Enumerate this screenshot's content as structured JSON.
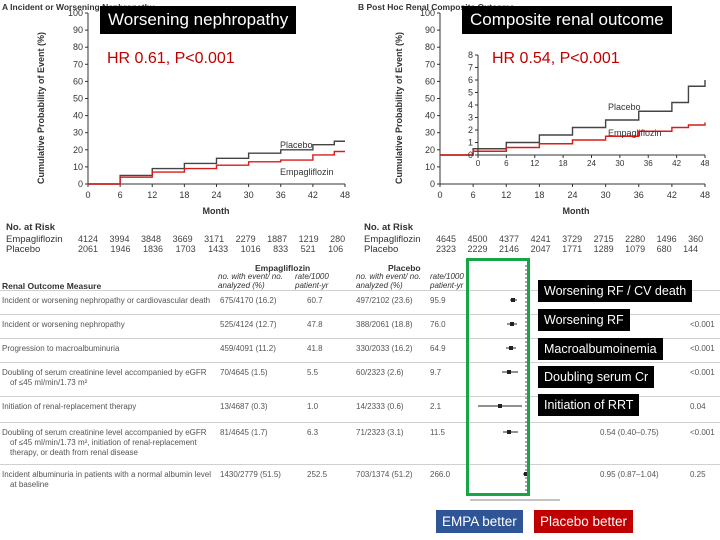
{
  "panel_a": {
    "header": "A Incident or Worsening Nephropathy",
    "banner": "Worsening nephropathy",
    "hr_text": "HR 0.61, P<0.001",
    "ylabel": "Cumulative Probability of Event (%)",
    "xlabel": "Month",
    "yticks": [
      "0",
      "10",
      "20",
      "30",
      "40",
      "50",
      "60",
      "70",
      "80",
      "90",
      "100"
    ],
    "xticks": [
      "0",
      "6",
      "12",
      "18",
      "24",
      "30",
      "36",
      "42",
      "48"
    ],
    "curve_labels": {
      "placebo": "Placebo",
      "empa": "Empagliflozin"
    },
    "risk": {
      "title": "No. at Risk",
      "rows": [
        {
          "label": "Empagliflozin",
          "values": "4124 3994 3848 3669 3171 2279 1887 1219 280"
        },
        {
          "label": "Placebo",
          "values": "2061 1946 1836 1703 1433 1016 833 521 106"
        }
      ]
    }
  },
  "panel_b": {
    "header": "B Post Hoc Renal Composite Outcome",
    "banner": "Composite renal outcome",
    "hr_text": "HR 0.54, P<0.001",
    "ylabel": "Cumulative Probability of Event (%)",
    "xlabel": "Month",
    "yticks": [
      "0",
      "10",
      "20",
      "30",
      "40",
      "50",
      "60",
      "70",
      "80",
      "90",
      "100"
    ],
    "inset_yticks": [
      "0",
      "1",
      "2",
      "3",
      "4",
      "5",
      "6",
      "7",
      "8"
    ],
    "xticks": [
      "0",
      "6",
      "12",
      "18",
      "24",
      "30",
      "36",
      "42",
      "48"
    ],
    "curve_labels": {
      "placebo": "Placebo",
      "empa": "Empagliflozin"
    },
    "risk": {
      "title": "No. at Risk",
      "rows": [
        {
          "label": "Empagliflozin",
          "values": "4645 4500 4377 4241 3729 2715 2280 1496 360"
        },
        {
          "label": "Placebo",
          "values": "2323 2229 2146 2047 1771 1289 1079 680 144"
        }
      ]
    }
  },
  "table": {
    "col_measure": "Renal Outcome Measure",
    "col_empa": "Empagliflozin",
    "col_placebo": "Placebo",
    "sub_events": "no. with event/ no. analyzed (%)",
    "sub_rate": "rate/1000 patient-yr",
    "rows": [
      {
        "measure": [
          "Incident or worsening nephropathy or cardiovascular death"
        ],
        "empa": "675/4170 (16.2)",
        "empa_rate": "60.7",
        "plac": "497/2102 (23.6)",
        "plac_rate": "95.9",
        "hr": "",
        "p": ""
      },
      {
        "measure": [
          "Incident or worsening nephropathy"
        ],
        "empa": "525/4124 (12.7)",
        "empa_rate": "47.8",
        "plac": "388/2061 (18.8)",
        "plac_rate": "76.0",
        "hr": "",
        "p": "<0.001"
      },
      {
        "measure": [
          "Progression to macroalbuminuria"
        ],
        "empa": "459/4091 (11.2)",
        "empa_rate": "41.8",
        "plac": "330/2033 (16.2)",
        "plac_rate": "64.9",
        "hr": "",
        "p": "<0.001"
      },
      {
        "measure": [
          "Doubling of serum creatinine level accompanied by eGFR",
          "of ≤45 ml/min/1.73 m²"
        ],
        "empa": "70/4645 (1.5)",
        "empa_rate": "5.5",
        "plac": "60/2323 (2.6)",
        "plac_rate": "9.7",
        "hr": "",
        "p": "<0.001"
      },
      {
        "measure": [
          "Initiation of renal-replacement therapy"
        ],
        "empa": "13/4687 (0.3)",
        "empa_rate": "1.0",
        "plac": "14/2333 (0.6)",
        "plac_rate": "2.1",
        "hr": "",
        "p": "0.04"
      },
      {
        "measure": [
          "Doubling of serum creatinine level accompanied by eGFR",
          "of ≤45 ml/min/1.73 m², initiation of renal-replacement",
          "therapy, or death from renal disease"
        ],
        "empa": "81/4645 (1.7)",
        "empa_rate": "6.3",
        "plac": "71/2323 (3.1)",
        "plac_rate": "11.5",
        "hr": "0.54 (0.40–0.75)",
        "p": "<0.001"
      },
      {
        "measure": [
          "Incident albuminuria in patients with a normal albumin level",
          "at baseline"
        ],
        "empa": "1430/2779 (51.5)",
        "empa_rate": "252.5",
        "plac": "703/1374 (51.2)",
        "plac_rate": "266.0",
        "hr": "0.95 (0.87–1.04)",
        "p": "0.25"
      }
    ]
  },
  "outcome_labels": [
    "Worsening RF / CV death",
    "Worsening RF",
    "Macroalbumoinemia",
    "Doubling serum Cr",
    "Initiation of RRT"
  ],
  "better_labels": {
    "empa": "EMPA better",
    "placebo": "Placebo better"
  },
  "colors": {
    "placebo": "#444444",
    "empa": "#d81c1c",
    "highlight_box": "#17a548",
    "empa_better_bg": "#2f5597",
    "placebo_better_bg": "#c00000",
    "banner_bg": "#000000",
    "hr_text": "#c00000"
  },
  "chart_data": [
    {
      "type": "line",
      "title": "Worsening nephropathy",
      "xlabel": "Month",
      "ylabel": "Cumulative Probability of Event (%)",
      "xlim": [
        0,
        48
      ],
      "ylim": [
        0,
        100
      ],
      "series": [
        {
          "name": "Placebo",
          "x": [
            0,
            6,
            12,
            18,
            24,
            30,
            36,
            42,
            46,
            48
          ],
          "y": [
            0,
            5,
            9,
            12,
            15,
            18,
            20,
            23,
            25,
            25
          ]
        },
        {
          "name": "Empagliflozin",
          "x": [
            0,
            6,
            12,
            18,
            24,
            30,
            36,
            42,
            46,
            48
          ],
          "y": [
            0,
            4,
            7,
            9,
            11,
            13,
            14,
            17,
            19,
            19
          ]
        }
      ]
    },
    {
      "type": "line",
      "title": "Composite renal outcome",
      "xlabel": "Month",
      "ylabel": "Cumulative Probability of Event (%)",
      "xlim": [
        0,
        48
      ],
      "ylim": [
        0,
        8
      ],
      "series": [
        {
          "name": "Placebo",
          "x": [
            0,
            6,
            12,
            18,
            24,
            30,
            36,
            42,
            45,
            48
          ],
          "y": [
            0,
            0.5,
            1.0,
            1.6,
            2.2,
            2.8,
            3.5,
            4.2,
            5.5,
            6.0
          ]
        },
        {
          "name": "Empagliflozin",
          "x": [
            0,
            6,
            12,
            18,
            24,
            30,
            36,
            42,
            45,
            48
          ],
          "y": [
            0,
            0.3,
            0.6,
            0.9,
            1.2,
            1.5,
            1.9,
            2.2,
            2.4,
            2.6
          ]
        }
      ]
    }
  ]
}
